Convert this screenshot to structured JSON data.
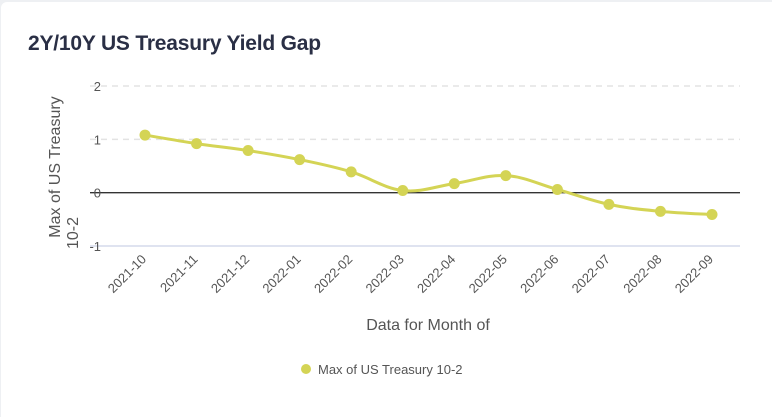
{
  "card": {
    "title": "2Y/10Y US Treasury Yield Gap"
  },
  "colors": {
    "series": "#d4d455",
    "zero_line": "#333333",
    "grid": "#e3e3e3",
    "bottom_axis": "#dfe3f0"
  },
  "chart_data": {
    "type": "line",
    "title": "2Y/10Y US Treasury Yield Gap",
    "xlabel": "Data for Month of",
    "ylabel_lines": [
      "Max of US Treasury",
      "10-2"
    ],
    "ylim": [
      -1,
      2
    ],
    "yticks": [
      "2",
      "1",
      "0",
      "-1"
    ],
    "ytick_values": [
      2,
      1,
      0,
      -1
    ],
    "grid": true,
    "legend": "bottom",
    "categories": [
      "2021-10",
      "2021-11",
      "2021-12",
      "2022-01",
      "2022-02",
      "2022-03",
      "2022-04",
      "2022-05",
      "2022-06",
      "2022-07",
      "2022-08",
      "2022-09"
    ],
    "series": [
      {
        "name": "Max of US Treasury 10-2",
        "values": [
          1.08,
          0.92,
          0.79,
          0.62,
          0.39,
          0.04,
          0.17,
          0.32,
          0.06,
          -0.22,
          -0.35,
          -0.41
        ]
      }
    ]
  }
}
